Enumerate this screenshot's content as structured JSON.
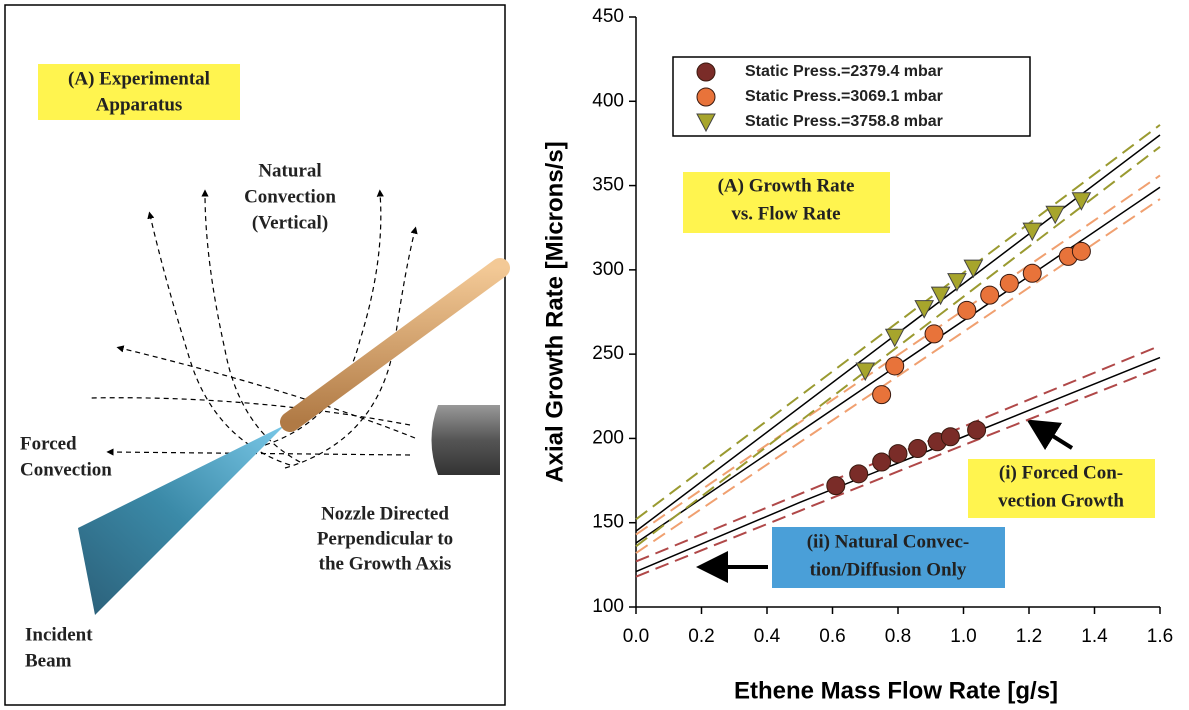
{
  "diagram": {
    "title": [
      "(A) Experimental",
      "Apparatus"
    ],
    "natural": [
      "Natural",
      "Convection",
      "(Vertical)"
    ],
    "forced": [
      "Forced",
      "Convection"
    ],
    "nozzle": [
      "Nozzle Directed",
      "Perpendicular to",
      "the Growth Axis"
    ],
    "beam": [
      "Incident",
      "Beam"
    ]
  },
  "chart_data": {
    "type": "scatter",
    "xlabel": "Ethene Mass Flow Rate [g/s]",
    "ylabel": "Axial Growth Rate [Microns/s]",
    "xlim": [
      0,
      1.6
    ],
    "ylim": [
      100,
      450
    ],
    "xticks": [
      {
        "value": 0,
        "label": "0.0"
      },
      0.2,
      0.4,
      0.6,
      0.8,
      {
        "value": 1,
        "label": "1.0"
      },
      1.2,
      1.4,
      1.6
    ],
    "yticks": [
      100,
      150,
      200,
      250,
      300,
      350,
      400,
      450
    ],
    "legend": "upper left",
    "series": [
      {
        "name": "Static Press.=2379.4 mbar",
        "color": "#7a2c28",
        "marker": "circle",
        "x": [
          0.61,
          0.68,
          0.75,
          0.8,
          0.86,
          0.92,
          0.96,
          1.04
        ],
        "values": [
          172,
          179,
          186,
          191,
          194,
          198,
          201,
          205
        ]
      },
      {
        "name": "Static Press.=3069.1 mbar",
        "color": "#e8733a",
        "marker": "circle",
        "x": [
          0.75,
          0.79,
          0.91,
          1.01,
          1.08,
          1.14,
          1.21,
          1.32,
          1.36
        ],
        "values": [
          226,
          243,
          262,
          276,
          285,
          292,
          298,
          308,
          311
        ]
      },
      {
        "name": "Static Press.=3758.8 mbar",
        "color": "#a7a52c",
        "marker": "triangle",
        "x": [
          0.7,
          0.79,
          0.88,
          0.93,
          0.98,
          1.03,
          1.21,
          1.28,
          1.36
        ],
        "values": [
          240,
          260,
          277,
          285,
          293,
          301,
          323,
          333,
          341
        ]
      }
    ],
    "fits": [
      {
        "color": "#000000",
        "style": "solid",
        "x": [
          0,
          0.5,
          1,
          1.6
        ],
        "values": [
          121,
          162,
          201,
          248
        ]
      },
      {
        "color": "#b04848",
        "style": "dashed",
        "x": [
          0,
          0.5,
          1,
          1.6
        ],
        "values": [
          127,
          167,
          207,
          255
        ]
      },
      {
        "color": "#b04848",
        "style": "dashed",
        "x": [
          0,
          0.5,
          1,
          1.6
        ],
        "values": [
          118,
          157,
          196,
          242
        ]
      },
      {
        "color": "#000000",
        "style": "solid",
        "x": [
          0,
          1.6
        ],
        "values": [
          138,
          349
        ]
      },
      {
        "color": "#f0a070",
        "style": "dashed",
        "x": [
          0,
          1.6
        ],
        "values": [
          132,
          342
        ]
      },
      {
        "color": "#f0a070",
        "style": "dashed",
        "x": [
          0,
          1.6
        ],
        "values": [
          143,
          356
        ]
      },
      {
        "color": "#000000",
        "style": "solid",
        "x": [
          0,
          1.6
        ],
        "values": [
          145,
          380
        ]
      },
      {
        "color": "#9a9a30",
        "style": "dashed",
        "x": [
          0,
          1.6
        ],
        "values": [
          152,
          386
        ]
      },
      {
        "color": "#9a9a30",
        "style": "dashed",
        "x": [
          0,
          1.6
        ],
        "values": [
          136,
          373
        ]
      }
    ],
    "annotations": {
      "panel": [
        "(A) Growth Rate",
        "vs. Flow Rate"
      ],
      "forced": [
        "(i) Forced Con-",
        "vection Growth"
      ],
      "natural": [
        "(ii) Natural Convec-",
        "tion/Diffusion Only"
      ]
    }
  }
}
